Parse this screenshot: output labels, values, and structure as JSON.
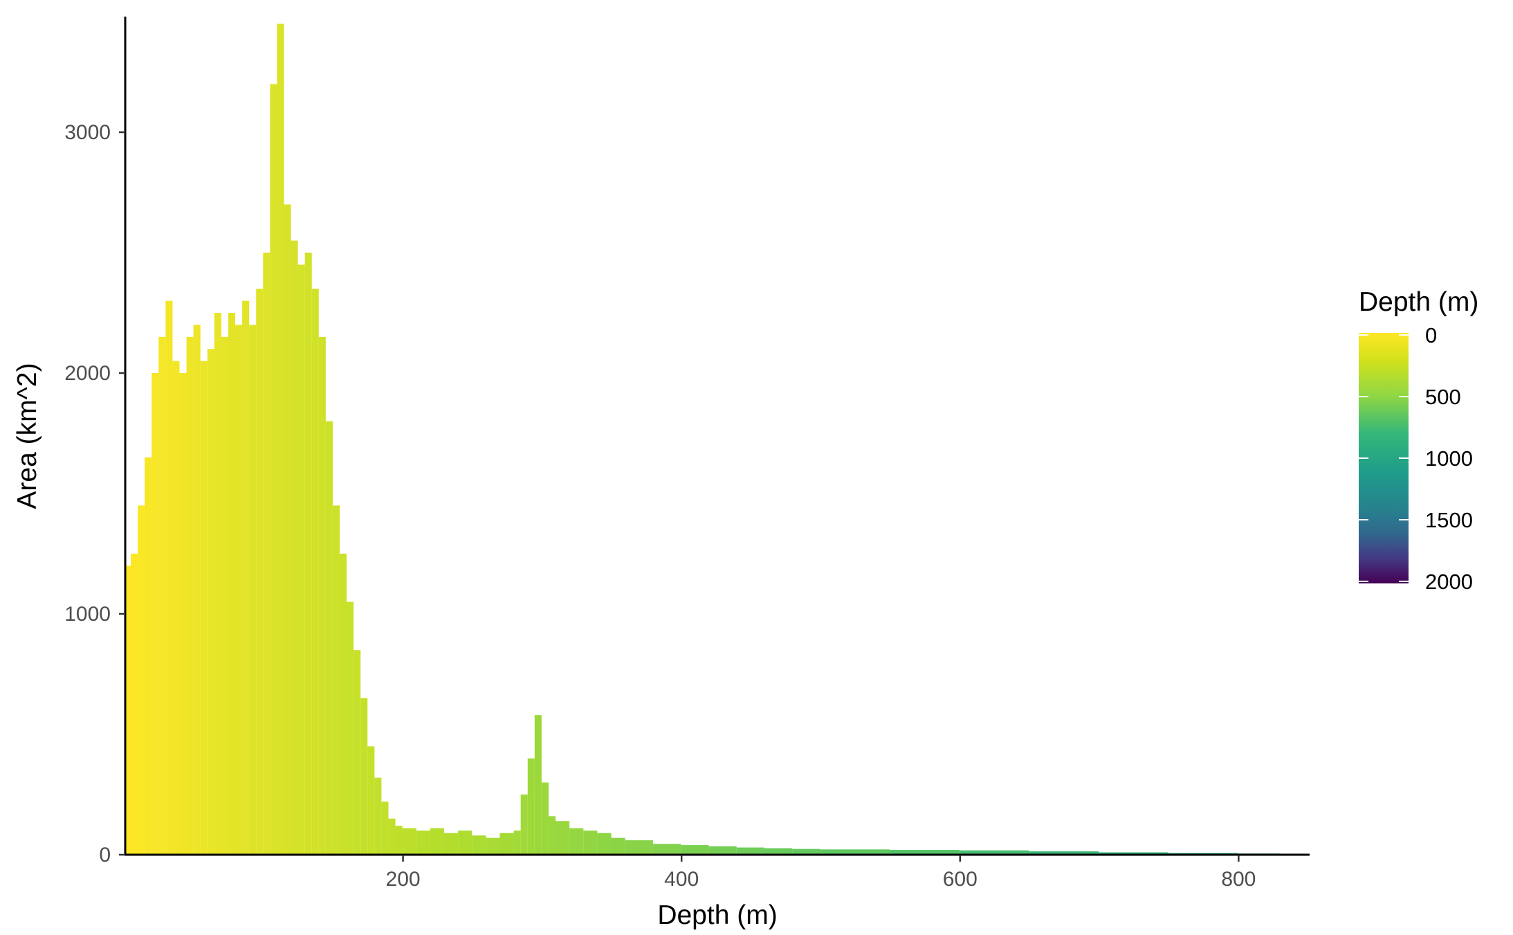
{
  "chart_data": {
    "type": "bar",
    "title": "",
    "xlabel": "Depth (m)",
    "ylabel": "Area (km^2)",
    "xlim": [
      1,
      850
    ],
    "ylim": [
      0,
      3480
    ],
    "x_ticks": [
      200,
      400,
      600,
      800
    ],
    "y_ticks": [
      0,
      1000,
      2000,
      3000
    ],
    "grid": false,
    "legend": {
      "title": "Depth (m)",
      "position": "right",
      "type": "colorbar",
      "limits": [
        0,
        2000
      ],
      "reverse": true,
      "breaks": [
        0,
        500,
        1000,
        1500,
        2000
      ],
      "colors": [
        "#FDE725",
        "#B4DE2C",
        "#6DCD59",
        "#35B779",
        "#1F9E89",
        "#26828E",
        "#31688E",
        "#3E4A89",
        "#482878",
        "#440154"
      ]
    },
    "series": [
      {
        "x": [
          1,
          5,
          10,
          15,
          20,
          25,
          30,
          35,
          40,
          45,
          50,
          55,
          60,
          65,
          70,
          75,
          80,
          85,
          90,
          95,
          100,
          105,
          110,
          115,
          120,
          125,
          130,
          135,
          140,
          145,
          150,
          155,
          160,
          165,
          170,
          175,
          180,
          185,
          190,
          195,
          200,
          210,
          220,
          230,
          240,
          250,
          260,
          270,
          280,
          285,
          290,
          295,
          300,
          305,
          310,
          320,
          330,
          340,
          350,
          360,
          380,
          400,
          420,
          440,
          460,
          480,
          500,
          550,
          600,
          650,
          700,
          750,
          800,
          830
        ],
        "values": [
          1200,
          1250,
          1450,
          1650,
          2000,
          2150,
          2300,
          2050,
          2000,
          2150,
          2200,
          2050,
          2100,
          2250,
          2150,
          2250,
          2200,
          2300,
          2200,
          2350,
          2500,
          3200,
          3450,
          2700,
          2550,
          2450,
          2500,
          2350,
          2150,
          1800,
          1450,
          1250,
          1050,
          850,
          650,
          450,
          320,
          220,
          150,
          120,
          110,
          100,
          110,
          90,
          100,
          80,
          70,
          90,
          100,
          250,
          400,
          580,
          300,
          160,
          140,
          110,
          100,
          90,
          70,
          60,
          45,
          40,
          35,
          30,
          27,
          24,
          22,
          20,
          18,
          14,
          10,
          7,
          5,
          3
        ]
      }
    ]
  }
}
